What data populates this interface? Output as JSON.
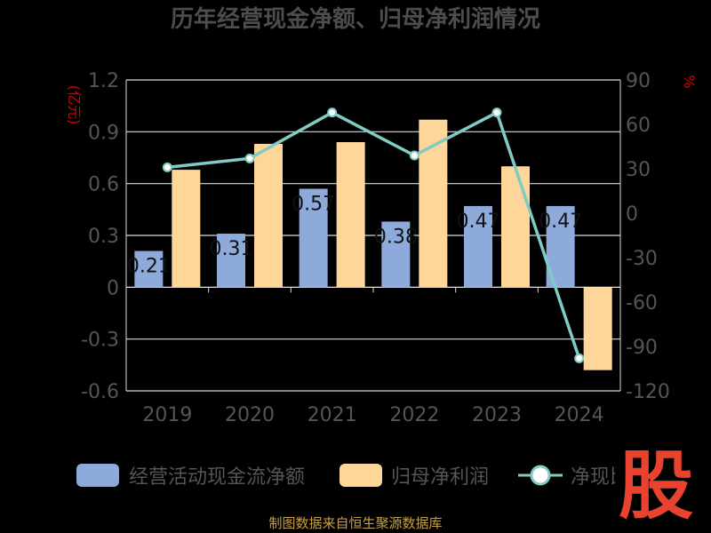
{
  "chart_data": {
    "type": "bar",
    "title": "历年经营现金净额、归母净利润情况",
    "categories": [
      "2019",
      "2020",
      "2021",
      "2022",
      "2023",
      "2024"
    ],
    "series": [
      {
        "name": "经营活动现金流净额",
        "type": "bar",
        "axis": "left",
        "values": [
          0.21,
          0.31,
          0.57,
          0.38,
          0.47,
          0.47
        ],
        "labels": [
          "0.21",
          "0.31",
          "0.57",
          "0.38",
          "0.47",
          "0.47"
        ],
        "color": "#8eaadb"
      },
      {
        "name": "归母净利润",
        "type": "bar",
        "axis": "left",
        "values": [
          0.68,
          0.83,
          0.84,
          0.97,
          0.7,
          -0.48
        ],
        "color": "#ffd699"
      },
      {
        "name": "净现比",
        "type": "line",
        "axis": "right",
        "values": [
          31,
          37,
          68,
          39,
          68,
          -98
        ],
        "color": "#80cbc4"
      }
    ],
    "y_left": {
      "unit": "(亿元)",
      "ylim": [
        -0.6,
        1.2
      ],
      "ticks": [
        "1.2",
        "0.9",
        "0.6",
        "0.3",
        "0",
        "-0.3",
        "-0.6"
      ],
      "tick_values": [
        1.2,
        0.9,
        0.6,
        0.3,
        0,
        -0.3,
        -0.6
      ]
    },
    "y_right": {
      "unit": "%",
      "ylim": [
        -120,
        90
      ],
      "ticks": [
        "90",
        "60",
        "30",
        "0",
        "-30",
        "-60",
        "-90",
        "-120"
      ],
      "tick_values": [
        90,
        60,
        30,
        0,
        -30,
        -60,
        -90,
        -120
      ]
    },
    "grid": true,
    "legend_position": "bottom"
  },
  "legend": {
    "items": [
      "经营活动现金流净额",
      "归母净利润",
      "净现比"
    ]
  },
  "footer": {
    "source": "制图数据来自恒生聚源数据库"
  },
  "watermark": {
    "logo": "股"
  }
}
